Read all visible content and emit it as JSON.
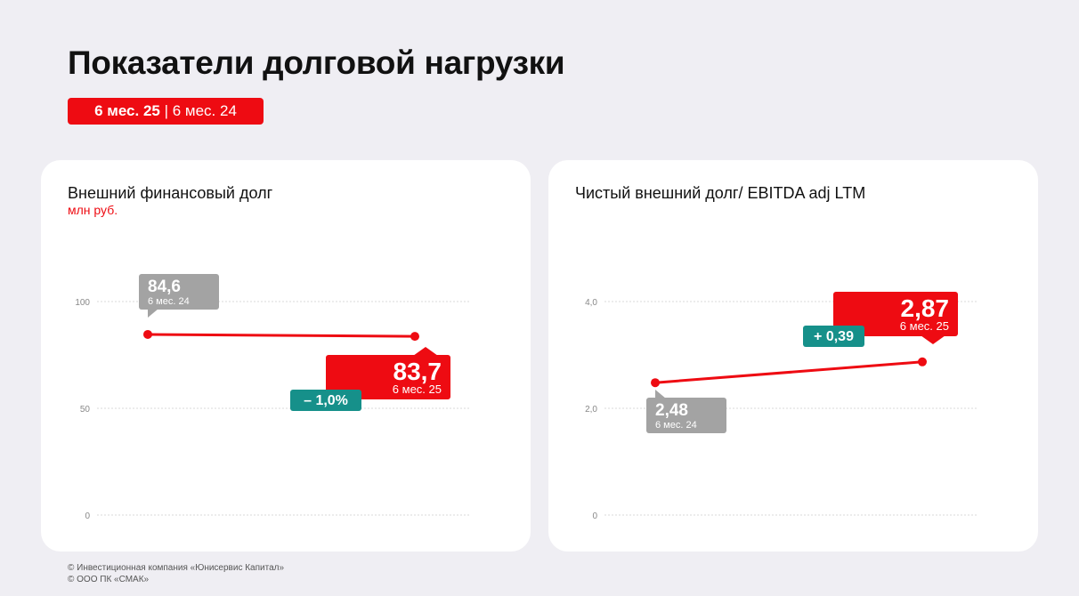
{
  "title": "Показатели долговой нагрузки",
  "period_badge": {
    "current": "6 мес. 25",
    "separator": " | ",
    "previous": "6 мес. 24"
  },
  "footer": {
    "line1": "© Инвестиционная компания «Юнисервис Капитал»",
    "line2": "© ООО ПК «СМАК»"
  },
  "colors": {
    "accent": "#ee0b12",
    "previous": "#a3a3a3",
    "change": "#16908a",
    "grid": "#d9d9d9"
  },
  "chart_data": [
    {
      "type": "line",
      "title": "Внешний финансовый долг",
      "unit": "млн руб.",
      "ylim": [
        0,
        100
      ],
      "yticks": [
        0,
        50,
        100
      ],
      "ytick_labels": [
        "0",
        "50",
        "100"
      ],
      "grid": true,
      "x": [
        "6 мес. 24",
        "6 мес. 25"
      ],
      "series": [
        {
          "values": [
            84.6,
            83.7
          ]
        }
      ],
      "point_labels": [
        {
          "value": "84,6",
          "period": "6 мес. 24"
        },
        {
          "value": "83,7",
          "period": "6 мес. 25"
        }
      ],
      "change_label": "– 1,0%"
    },
    {
      "type": "line",
      "title": "Чистый внешний долг/ EBITDA adj LTM",
      "unit": "",
      "ylim": [
        0,
        4.0
      ],
      "yticks": [
        0,
        2.0,
        4.0
      ],
      "ytick_labels": [
        "0",
        "2,0",
        "4,0"
      ],
      "grid": true,
      "x": [
        "6 мес. 24",
        "6 мес. 25"
      ],
      "series": [
        {
          "values": [
            2.48,
            2.87
          ]
        }
      ],
      "point_labels": [
        {
          "value": "2,48",
          "period": "6 мес. 24"
        },
        {
          "value": "2,87",
          "period": "6 мес. 25"
        }
      ],
      "change_label": "+ 0,39"
    }
  ]
}
